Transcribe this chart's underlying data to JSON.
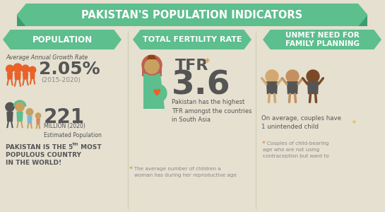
{
  "title": "PAKISTAN'S POPULATION INDICATORS",
  "bg_color": "#e5e0d0",
  "banner_color": "#5dbe8e",
  "banner_dark": "#3a9e72",
  "section_titles": [
    "POPULATION",
    "TOTAL FERTILITY RATE",
    "UNMET NEED FOR\nFAMILY PLANNING"
  ],
  "growth_rate_label": "Average Annual Growth Rate",
  "growth_rate_value": "2.05%",
  "growth_rate_period": "(2015-2020)",
  "population_value": "221",
  "population_label": "MILLION (2020)\nEstimated Population",
  "pakistan_note_line1": "PAKISTAN IS THE 5",
  "pakistan_note_line2": "TH",
  "pakistan_note_line3": " MOST",
  "pakistan_note_rest": "POPULOUS COUNTRY\nIN THE WORLD!",
  "tfr_label": "TFR",
  "tfr_value": "3.6",
  "tfr_note": "Pakistan has the highest\nTFR amongst the countries\nin South Asia",
  "tfr_footnote": "* The average number of children a\n  woman has during her reproductive age",
  "unmet_note": "On average, couples have\n1 unintended child",
  "unmet_footnote": "* Couples of child-bearing\nage who are not using\ncontraception but want to",
  "orange_color": "#e8622a",
  "dark_text": "#555555",
  "teal_color": "#5dbe8e",
  "star_color": "#e8a020",
  "gray_text": "#888888",
  "body_dark": "#555555"
}
